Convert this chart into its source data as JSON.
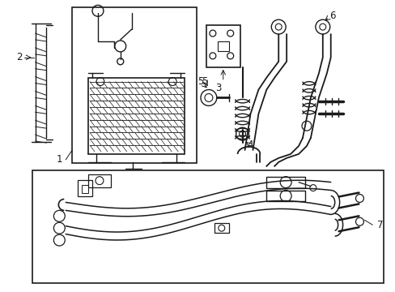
{
  "bg_color": "#ffffff",
  "line_color": "#1a1a1a",
  "figsize": [
    4.89,
    3.6
  ],
  "dpi": 100,
  "label_fontsize": 8.5
}
